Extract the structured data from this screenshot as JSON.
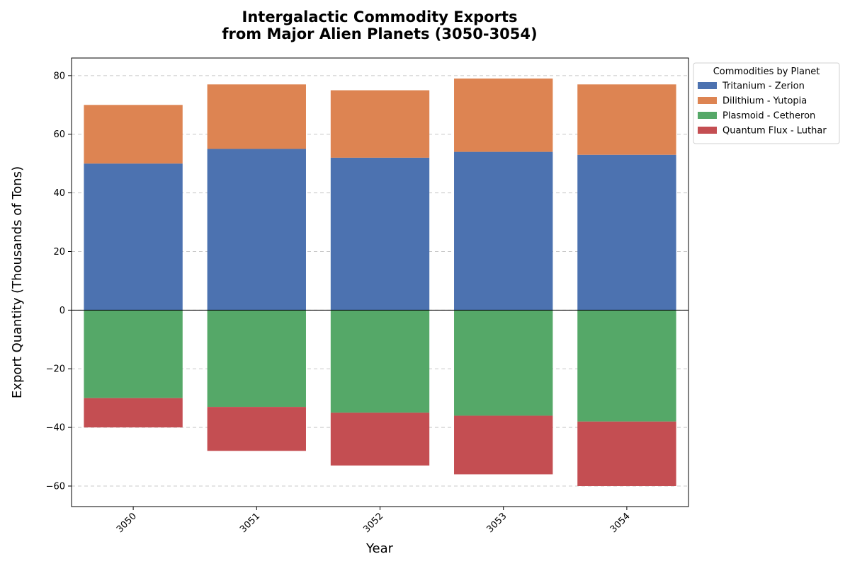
{
  "chart_data": {
    "type": "bar",
    "stacked": true,
    "title_lines": [
      "Intergalactic Commodity Exports",
      "from Major Alien Planets (3050-3054)"
    ],
    "xlabel": "Year",
    "ylabel": "Export Quantity (Thousands of Tons)",
    "categories": [
      "3050",
      "3051",
      "3052",
      "3053",
      "3054"
    ],
    "ylim": [
      -67,
      86
    ],
    "yticks": [
      -60,
      -40,
      -20,
      0,
      20,
      40,
      60,
      80
    ],
    "ytick_labels": [
      "−60",
      "−40",
      "−20",
      "0",
      "20",
      "40",
      "60",
      "80"
    ],
    "grid": "horizontal-dashed",
    "legend": {
      "title": "Commodities by Planet",
      "placement": "outside-top-right"
    },
    "series": [
      {
        "name": "Tritanium - Zerion",
        "color": "#4c72b0",
        "direction": "positive",
        "values": [
          50,
          55,
          52,
          54,
          53
        ]
      },
      {
        "name": "Dilithium - Yutopia",
        "color": "#dd8452",
        "direction": "positive",
        "values": [
          20,
          22,
          23,
          25,
          24
        ]
      },
      {
        "name": "Plasmoid - Cetheron",
        "color": "#55a868",
        "direction": "negative",
        "values": [
          -30,
          -33,
          -35,
          -36,
          -38
        ]
      },
      {
        "name": "Quantum Flux - Luthar",
        "color": "#c44e52",
        "direction": "negative",
        "values": [
          -10,
          -15,
          -18,
          -20,
          -22
        ]
      }
    ]
  }
}
